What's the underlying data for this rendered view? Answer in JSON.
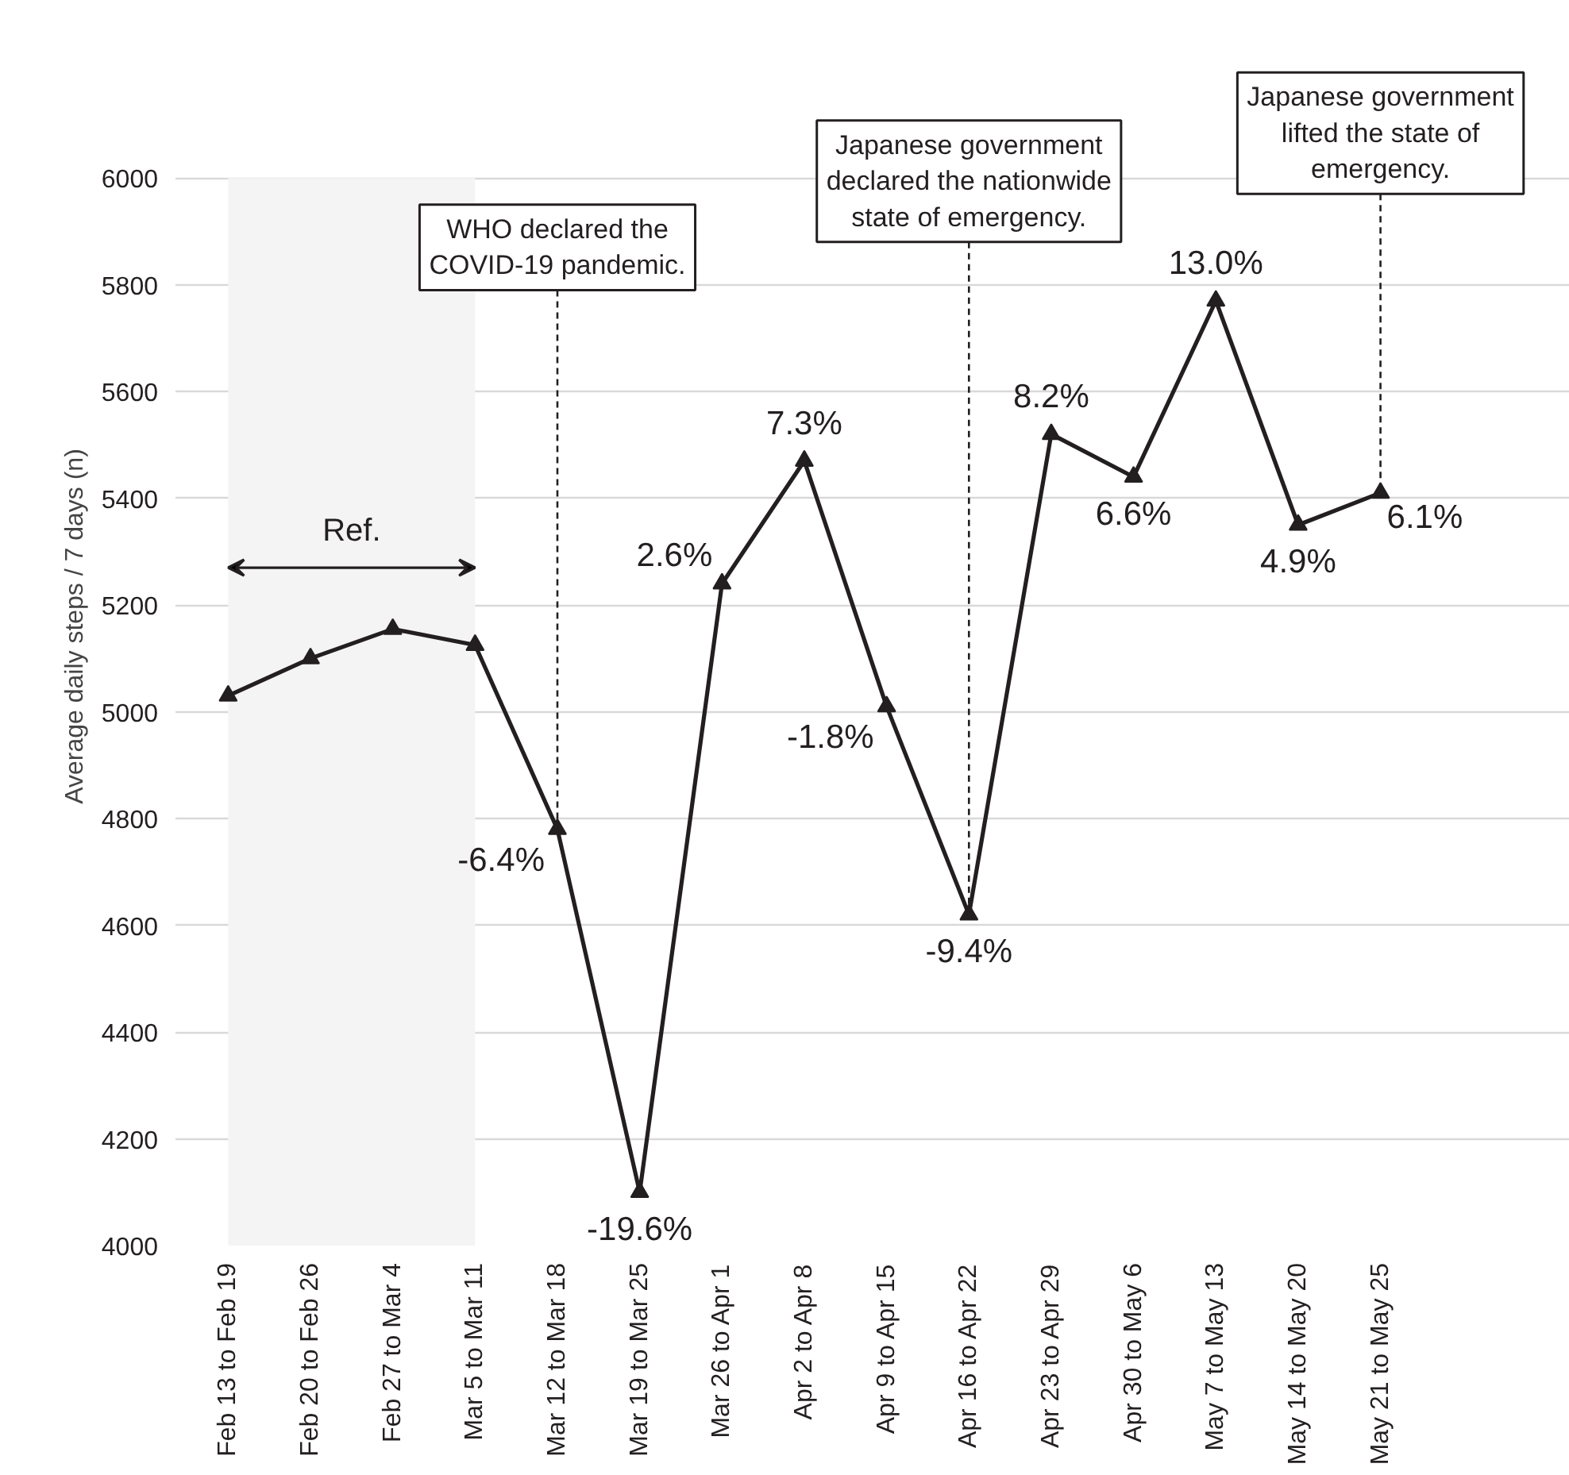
{
  "chart_data": {
    "type": "line",
    "ylabel": "Average daily steps / 7 days (n)",
    "categories": [
      "Feb 13 to Feb 19",
      "Feb 20 to Feb 26",
      "Feb 27 to Mar 4",
      "Mar 5 to Mar 11",
      "Mar 12 to Mar 18",
      "Mar 19 to Mar 25",
      "Mar 26 to Apr 1",
      "Apr 2 to Apr 8",
      "Apr 9 to Apr 15",
      "Apr 16 to Apr 22",
      "Apr 23 to Apr 29",
      "Apr 30 to May 6",
      "May 7 to May 13",
      "May 14 to May 20",
      "May 21 to May 25"
    ],
    "series": [
      {
        "color": "#231f20",
        "values": [
          5030,
          5100,
          5155,
          5125,
          4780,
          4100,
          5240,
          5470,
          5010,
          4620,
          5520,
          5440,
          5770,
          5350,
          5410
        ]
      }
    ],
    "ylim": [
      4000,
      6000
    ],
    "yticks": [
      4000,
      4200,
      4400,
      4600,
      4800,
      5000,
      5200,
      5400,
      5600,
      5800,
      6000
    ],
    "grid": "y",
    "marker": "triangle",
    "line_style": "solid",
    "bands": [
      {
        "axis": "x",
        "from": "Feb 13 to Feb 19",
        "to": "Mar 5 to Mar 11",
        "label": "Ref.",
        "color": "#f4f4f4"
      }
    ],
    "annotations": [
      {
        "text": "WHO declared the COVID-19 pandemic.",
        "x": "Mar 12 to Mar 18",
        "y": 4780
      },
      {
        "text": "Japanese government declared the nationwide state of emergency.",
        "x": "Apr 16 to Apr 22",
        "y": 4620
      },
      {
        "text": "Japanese government lifted the state of emergency.",
        "x": "May 21 to May 25",
        "y": 5410
      },
      {
        "text": "-6.4%",
        "x": "Mar 12 to Mar 18",
        "y": 4780
      },
      {
        "text": "-19.6%",
        "x": "Mar 19 to Mar 25",
        "y": 4100
      },
      {
        "text": "2.6%",
        "x": "Mar 26 to Apr 1",
        "y": 5240
      },
      {
        "text": "7.3%",
        "x": "Apr 2 to Apr 8",
        "y": 5470
      },
      {
        "text": "-1.8%",
        "x": "Apr 9 to Apr 15",
        "y": 5010
      },
      {
        "text": "-9.4%",
        "x": "Apr 16 to Apr 22",
        "y": 4620
      },
      {
        "text": "8.2%",
        "x": "Apr 23 to Apr 29",
        "y": 5520
      },
      {
        "text": "6.6%",
        "x": "Apr 30 to May 6",
        "y": 5440
      },
      {
        "text": "13.0%",
        "x": "May 7 to May 13",
        "y": 5770
      },
      {
        "text": "4.9%",
        "x": "May 14 to May 20",
        "y": 5350
      },
      {
        "text": "6.1%",
        "x": "May 21 to May 25",
        "y": 5410
      }
    ]
  }
}
